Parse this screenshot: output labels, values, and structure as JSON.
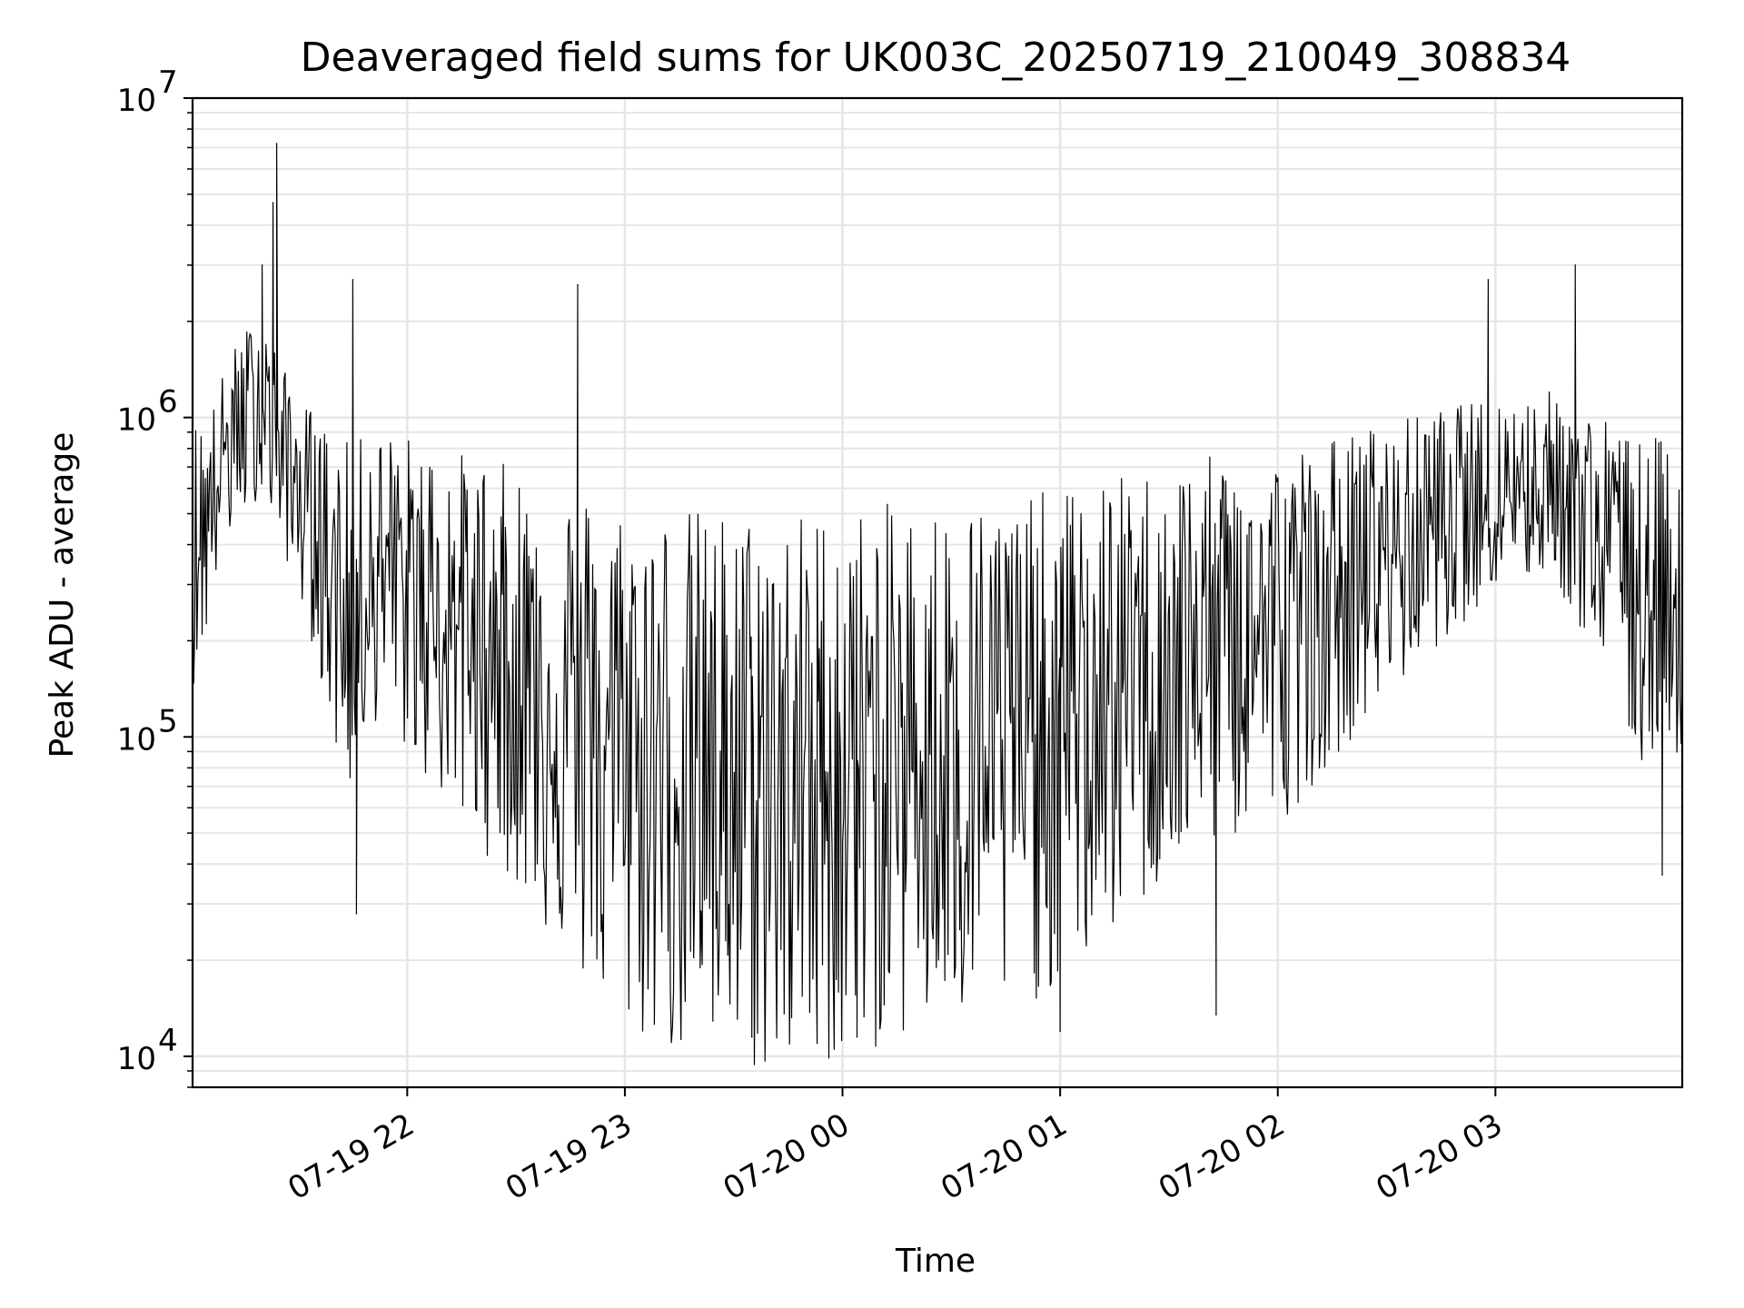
{
  "chart_data": {
    "type": "line",
    "title": "Deaveraged field sums for UK003C_20250719_210049_308834",
    "xlabel": "Time",
    "ylabel": "Peak ADU - average",
    "y_scale": "log",
    "ylim": [
      8000,
      10000000
    ],
    "xlim": [
      "2025-07-19 21:00:49",
      "2025-07-20 03:51:30"
    ],
    "grid": true,
    "grid_color": "#e6e6e6",
    "line_color": "#000000",
    "x_ticks": [
      {
        "value": "2025-07-19 22:00",
        "label": "07-19 22"
      },
      {
        "value": "2025-07-19 23:00",
        "label": "07-19 23"
      },
      {
        "value": "2025-07-20 00:00",
        "label": "07-20 00"
      },
      {
        "value": "2025-07-20 01:00",
        "label": "07-20 01"
      },
      {
        "value": "2025-07-20 02:00",
        "label": "07-20 02"
      },
      {
        "value": "2025-07-20 03:00",
        "label": "07-20 03"
      }
    ],
    "y_ticks": [
      {
        "value": 10000,
        "base": "10",
        "exp": "4"
      },
      {
        "value": 100000,
        "base": "10",
        "exp": "5"
      },
      {
        "value": 1000000,
        "base": "10",
        "exp": "6"
      },
      {
        "value": 10000000,
        "base": "10",
        "exp": "7"
      }
    ],
    "series": [
      {
        "points": [
          {
            "x": "2025-07-19 21:00:49",
            "y": 400000
          },
          {
            "x": "2025-07-19 21:05",
            "y": 500000
          },
          {
            "x": "2025-07-19 21:10",
            "y": 800000
          },
          {
            "x": "2025-07-19 21:15",
            "y": 1000000
          },
          {
            "x": "2025-07-19 21:20",
            "y": 1200000
          },
          {
            "x": "2025-07-19 21:25",
            "y": 800000
          },
          {
            "x": "2025-07-19 21:30",
            "y": 600000
          },
          {
            "x": "2025-07-19 21:35",
            "y": 450000
          },
          {
            "x": "2025-07-19 21:40",
            "y": 300000
          },
          {
            "x": "2025-07-19 21:45",
            "y": 250000
          },
          {
            "x": "2025-07-19 21:50",
            "y": 350000
          },
          {
            "x": "2025-07-19 22:00",
            "y": 300000
          },
          {
            "x": "2025-07-19 22:15",
            "y": 220000
          },
          {
            "x": "2025-07-19 22:30",
            "y": 170000
          },
          {
            "x": "2025-07-19 22:45",
            "y": 120000
          },
          {
            "x": "2025-07-19 23:00",
            "y": 90000
          },
          {
            "x": "2025-07-19 23:20",
            "y": 80000
          },
          {
            "x": "2025-07-19 23:40",
            "y": 75000
          },
          {
            "x": "2025-07-20 00:00",
            "y": 80000
          },
          {
            "x": "2025-07-20 00:20",
            "y": 90000
          },
          {
            "x": "2025-07-20 00:40",
            "y": 95000
          },
          {
            "x": "2025-07-20 01:00",
            "y": 110000
          },
          {
            "x": "2025-07-20 01:20",
            "y": 150000
          },
          {
            "x": "2025-07-20 01:40",
            "y": 200000
          },
          {
            "x": "2025-07-20 02:00",
            "y": 220000
          },
          {
            "x": "2025-07-20 02:20",
            "y": 320000
          },
          {
            "x": "2025-07-20 02:40",
            "y": 450000
          },
          {
            "x": "2025-07-20 03:00",
            "y": 600000
          },
          {
            "x": "2025-07-20 03:15",
            "y": 650000
          },
          {
            "x": "2025-07-20 03:30",
            "y": 420000
          },
          {
            "x": "2025-07-20 03:40",
            "y": 280000
          },
          {
            "x": "2025-07-20 03:51:30",
            "y": 300000
          }
        ],
        "peaks": [
          {
            "x": "2025-07-19 21:20",
            "y": 3000000
          },
          {
            "x": "2025-07-19 21:24",
            "y": 7200000
          },
          {
            "x": "2025-07-19 21:23",
            "y": 4700000
          },
          {
            "x": "2025-07-19 21:45",
            "y": 2700000
          },
          {
            "x": "2025-07-19 22:47",
            "y": 2600000
          },
          {
            "x": "2025-07-19 23:35",
            "y": 11500
          },
          {
            "x": "2025-07-19 23:53",
            "y": 11000
          },
          {
            "x": "2025-07-20 00:04",
            "y": 11500
          },
          {
            "x": "2025-07-20 01:00",
            "y": 12000
          },
          {
            "x": "2025-07-20 01:43",
            "y": 13500
          },
          {
            "x": "2025-07-20 02:58",
            "y": 2700000
          },
          {
            "x": "2025-07-20 03:22",
            "y": 3000000
          },
          {
            "x": "2025-07-19 21:46",
            "y": 28000
          },
          {
            "x": "2025-07-20 03:46",
            "y": 37000
          }
        ]
      }
    ]
  }
}
